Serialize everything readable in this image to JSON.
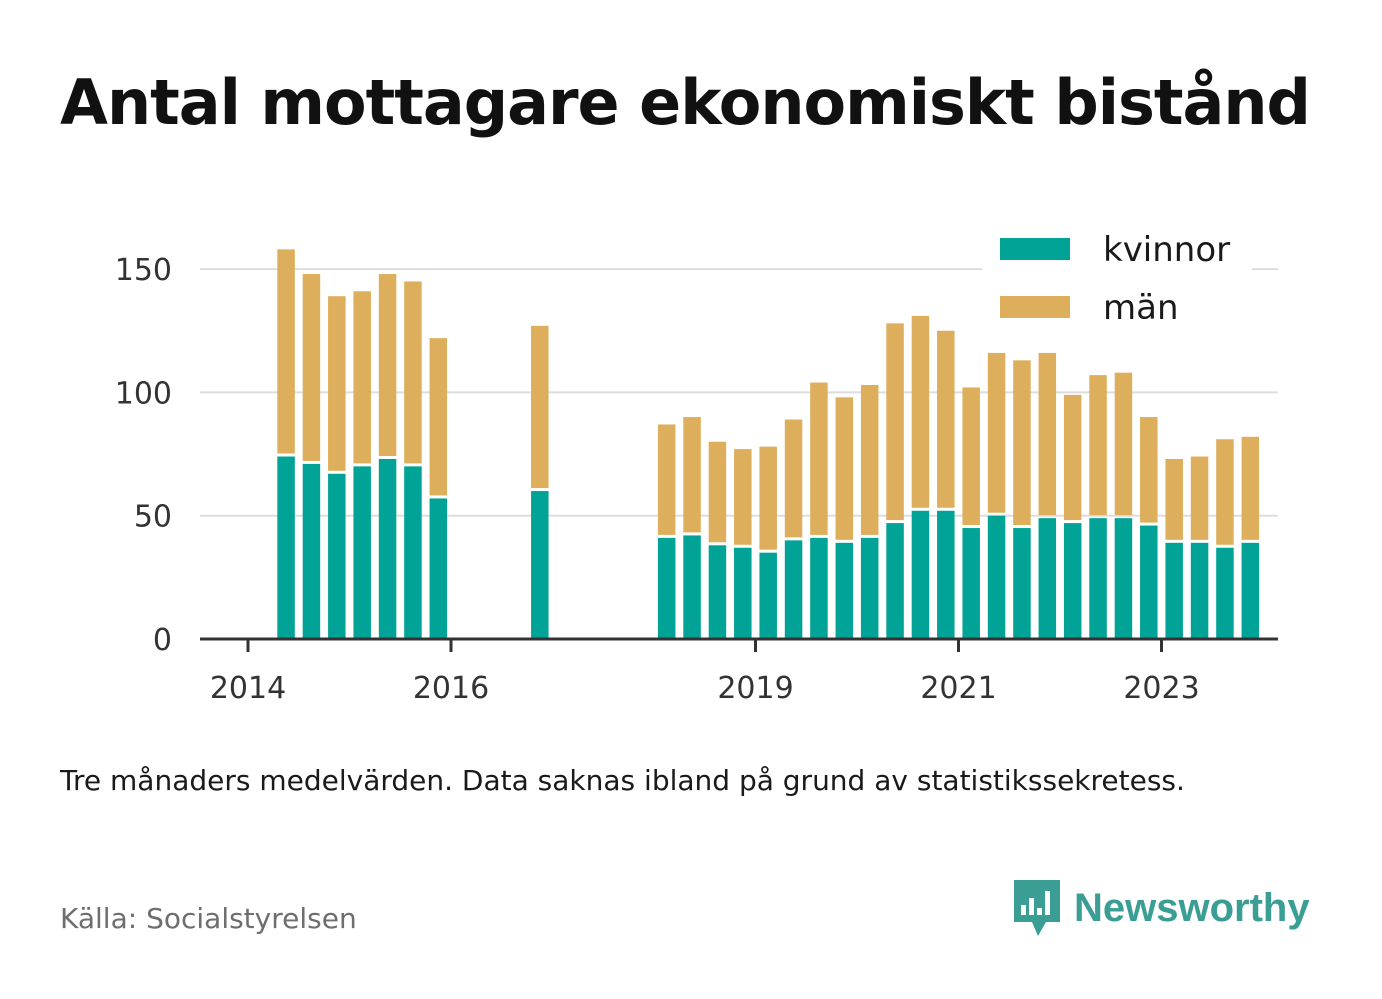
{
  "title": "Antal mottagare ekonomiskt bistånd",
  "caption": "Tre månaders medelvärden. Data saknas ibland på grund av statistikssekretess.",
  "source": "Källa: Socialstyrelsen",
  "brand": {
    "name": "Newsworthy",
    "icon": "newsworthy-logo-icon",
    "color": "#3a9e95"
  },
  "colors": {
    "kvinnor": "#00a396",
    "man": "#ddae5b",
    "grid": "#dddddd",
    "axis": "#333333"
  },
  "chart_data": {
    "type": "bar",
    "stacked": true,
    "x_ticks": [
      "2014",
      "2016",
      "2019",
      "2021",
      "2023"
    ],
    "y_ticks": [
      "0",
      "50",
      "100",
      "150"
    ],
    "ylim": [
      0,
      165
    ],
    "grid": true,
    "legend_position": "top-right",
    "legend": [
      "kvinnor",
      "män"
    ],
    "x_unit": "quarter",
    "x": [
      "2014-Q2",
      "2014-Q3",
      "2014-Q4",
      "2015-Q1",
      "2015-Q2",
      "2015-Q3",
      "2015-Q4",
      "2016-Q1",
      "2016-Q2",
      "2016-Q3",
      "2016-Q4",
      "2017-Q1",
      "2017-Q2",
      "2017-Q3",
      "2017-Q4",
      "2018-Q1",
      "2018-Q2",
      "2018-Q3",
      "2018-Q4",
      "2019-Q1",
      "2019-Q2",
      "2019-Q3",
      "2019-Q4",
      "2020-Q1",
      "2020-Q2",
      "2020-Q3",
      "2020-Q4",
      "2021-Q1",
      "2021-Q2",
      "2021-Q3",
      "2021-Q4",
      "2022-Q1",
      "2022-Q2",
      "2022-Q3",
      "2022-Q4",
      "2023-Q1",
      "2023-Q2",
      "2023-Q3",
      "2023-Q4"
    ],
    "series": [
      {
        "name": "kvinnor",
        "values": [
          74,
          71,
          67,
          70,
          73,
          70,
          57,
          null,
          null,
          null,
          60,
          null,
          null,
          null,
          null,
          41,
          42,
          38,
          37,
          35,
          40,
          41,
          39,
          41,
          47,
          52,
          52,
          45,
          50,
          45,
          49,
          47,
          49,
          49,
          46,
          39,
          39,
          37,
          39
        ]
      },
      {
        "name": "män",
        "values": [
          84,
          77,
          72,
          71,
          75,
          75,
          65,
          null,
          null,
          null,
          67,
          null,
          null,
          null,
          null,
          46,
          48,
          42,
          40,
          43,
          49,
          63,
          59,
          62,
          81,
          79,
          73,
          57,
          66,
          68,
          67,
          52,
          58,
          59,
          44,
          34,
          35,
          44,
          43
        ]
      }
    ]
  }
}
